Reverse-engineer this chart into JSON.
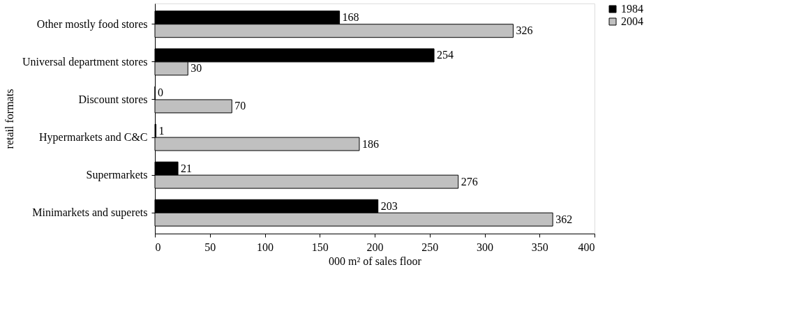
{
  "chart_data": {
    "type": "bar",
    "orientation": "horizontal",
    "xlabel": "000 m² of sales floor",
    "ylabel": "retail formats",
    "categories": [
      "Other mostly food stores",
      "Universal department stores",
      "Discount stores",
      "Hypermarkets and C&C",
      "Supermarkets",
      "Minimarkets and superets"
    ],
    "series": [
      {
        "name": "1984",
        "color": "#000000",
        "values": [
          168,
          254,
          0,
          1,
          21,
          203
        ]
      },
      {
        "name": "2004",
        "color": "#c0c0c0",
        "values": [
          326,
          30,
          70,
          186,
          276,
          362
        ]
      }
    ],
    "xlim": [
      0,
      400
    ],
    "xticks": [
      0,
      50,
      100,
      150,
      200,
      250,
      300,
      350,
      400
    ],
    "data_labels": true,
    "legend": "right",
    "grid": false
  }
}
